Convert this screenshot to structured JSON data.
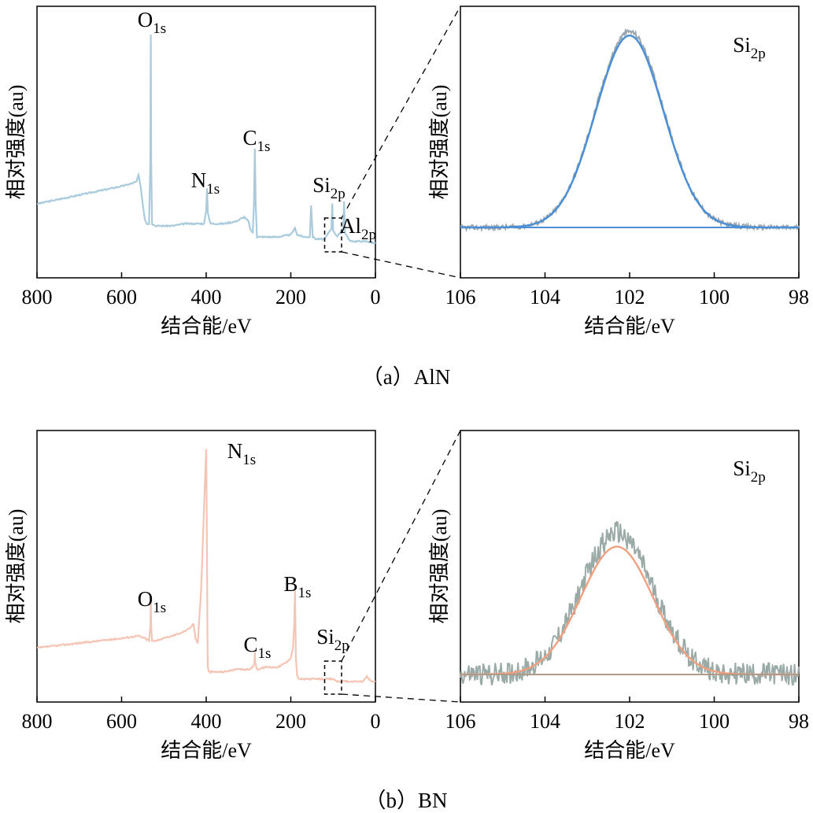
{
  "figure": {
    "captions": {
      "a": "（a）AlN",
      "b": "（b）BN"
    }
  },
  "chart_data": [
    {
      "id": "a_survey",
      "type": "line",
      "xlabel": "结合能/eV",
      "ylabel": "相对强度(au)",
      "xlim": [
        800,
        0
      ],
      "x_reversed": true,
      "xticks": [
        "800",
        "600",
        "400",
        "200",
        "0"
      ],
      "yticks": [],
      "color": "#a9cbdc",
      "annotations": [
        {
          "base": "O",
          "sub": "1s",
          "x": 531
        },
        {
          "base": "N",
          "sub": "1s",
          "x": 397
        },
        {
          "base": "C",
          "sub": "1s",
          "x": 285
        },
        {
          "base": "Si",
          "sub": "2p",
          "x": 102
        },
        {
          "base": "Al",
          "sub": "2p",
          "x": 74
        }
      ],
      "zoom_box_x": [
        120,
        80
      ],
      "series": [
        {
          "x": [
            800,
            750,
            700,
            650,
            600,
            580,
            565,
            560,
            555,
            550,
            545,
            540,
            535,
            532,
            531,
            530,
            528,
            520,
            500,
            480,
            450,
            420,
            405,
            400,
            398,
            396,
            390,
            360,
            330,
            310,
            300,
            295,
            290,
            287,
            285,
            283,
            280,
            270,
            250,
            230,
            200,
            190,
            185,
            170,
            155,
            152,
            148,
            140,
            120,
            104,
            102,
            100,
            90,
            76,
            74,
            72,
            60,
            40,
            20,
            0
          ],
          "y": [
            0.2,
            0.22,
            0.24,
            0.26,
            0.28,
            0.29,
            0.3,
            0.33,
            0.28,
            0.2,
            0.13,
            0.11,
            0.11,
            0.4,
            0.97,
            0.4,
            0.11,
            0.1,
            0.1,
            0.1,
            0.11,
            0.11,
            0.11,
            0.17,
            0.27,
            0.16,
            0.11,
            0.11,
            0.12,
            0.14,
            0.12,
            0.08,
            0.07,
            0.2,
            0.45,
            0.2,
            0.05,
            0.05,
            0.05,
            0.05,
            0.06,
            0.09,
            0.06,
            0.05,
            0.05,
            0.19,
            0.05,
            0.04,
            0.04,
            0.09,
            0.2,
            0.08,
            0.05,
            0.09,
            0.21,
            0.07,
            0.03,
            0.03,
            0.03,
            0.02
          ]
        }
      ]
    },
    {
      "id": "a_si2p",
      "type": "line",
      "xlabel": "结合能/eV",
      "ylabel": "相对强度(au)",
      "xlim": [
        106,
        98
      ],
      "x_reversed": true,
      "xticks": [
        "106",
        "104",
        "102",
        "100",
        "98"
      ],
      "yticks": [],
      "annotations": [
        {
          "base": "Si",
          "sub": "2p"
        }
      ],
      "baseline": 0.0,
      "series": [
        {
          "role": "raw",
          "color": "#9ba6ae",
          "peak_x": 102.0,
          "peak_y": 0.98,
          "sigma": 0.8
        },
        {
          "role": "fit",
          "color": "#4a8fd6",
          "peak_x": 102.0,
          "peak_y": 0.96,
          "sigma": 0.8
        },
        {
          "role": "background",
          "color": "#4a8fd6",
          "x": [
            106,
            98
          ],
          "y": [
            0.0,
            0.0
          ]
        }
      ]
    },
    {
      "id": "b_survey",
      "type": "line",
      "xlabel": "结合能/eV",
      "ylabel": "相对强度(au)",
      "xlim": [
        800,
        0
      ],
      "x_reversed": true,
      "xticks": [
        "800",
        "600",
        "400",
        "200",
        "0"
      ],
      "yticks": [],
      "color": "#f4c5b5",
      "annotations": [
        {
          "base": "N",
          "sub": "1s",
          "x": 398
        },
        {
          "base": "O",
          "sub": "1s",
          "x": 531
        },
        {
          "base": "B",
          "sub": "1s",
          "x": 190
        },
        {
          "base": "C",
          "sub": "1s",
          "x": 285
        },
        {
          "base": "Si",
          "sub": "2p",
          "x": 102
        }
      ],
      "zoom_box_x": [
        120,
        80
      ],
      "series": [
        {
          "x": [
            800,
            700,
            600,
            560,
            545,
            535,
            532,
            531,
            530,
            528,
            520,
            500,
            480,
            450,
            440,
            430,
            425,
            420,
            412,
            405,
            400,
            399,
            398,
            397,
            396,
            394,
            390,
            380,
            360,
            330,
            300,
            290,
            286,
            285,
            284,
            280,
            260,
            230,
            220,
            210,
            200,
            195,
            192,
            190,
            188,
            185,
            180,
            170,
            150,
            120,
            100,
            90,
            60,
            30,
            20,
            10,
            0
          ],
          "y": [
            0.16,
            0.18,
            0.2,
            0.21,
            0.2,
            0.19,
            0.25,
            0.35,
            0.25,
            0.19,
            0.19,
            0.2,
            0.21,
            0.23,
            0.24,
            0.26,
            0.2,
            0.18,
            0.4,
            0.75,
            0.99,
            0.8,
            0.5,
            0.2,
            0.08,
            0.06,
            0.06,
            0.06,
            0.06,
            0.07,
            0.07,
            0.08,
            0.1,
            0.14,
            0.1,
            0.07,
            0.08,
            0.08,
            0.09,
            0.1,
            0.12,
            0.16,
            0.25,
            0.4,
            0.12,
            0.04,
            0.03,
            0.03,
            0.03,
            0.03,
            0.03,
            0.02,
            0.02,
            0.02,
            0.04,
            0.02,
            0.02
          ]
        }
      ]
    },
    {
      "id": "b_si2p",
      "type": "line",
      "xlabel": "结合能/eV",
      "ylabel": "相对强度(au)",
      "xlim": [
        106,
        98
      ],
      "x_reversed": true,
      "xticks": [
        "106",
        "104",
        "102",
        "100",
        "98"
      ],
      "yticks": [],
      "annotations": [
        {
          "base": "Si",
          "sub": "2p"
        }
      ],
      "baseline": 0.0,
      "series": [
        {
          "role": "raw",
          "color": "#9aaaa6",
          "peak_x": 102.3,
          "peak_y": 0.62,
          "sigma": 0.85,
          "noise": 0.05
        },
        {
          "role": "fit",
          "color": "#f0a080",
          "peak_x": 102.3,
          "peak_y": 0.56,
          "sigma": 0.85
        },
        {
          "role": "background",
          "color": "#b09a88",
          "x": [
            106,
            98
          ],
          "y": [
            0.0,
            0.0
          ]
        }
      ]
    }
  ]
}
